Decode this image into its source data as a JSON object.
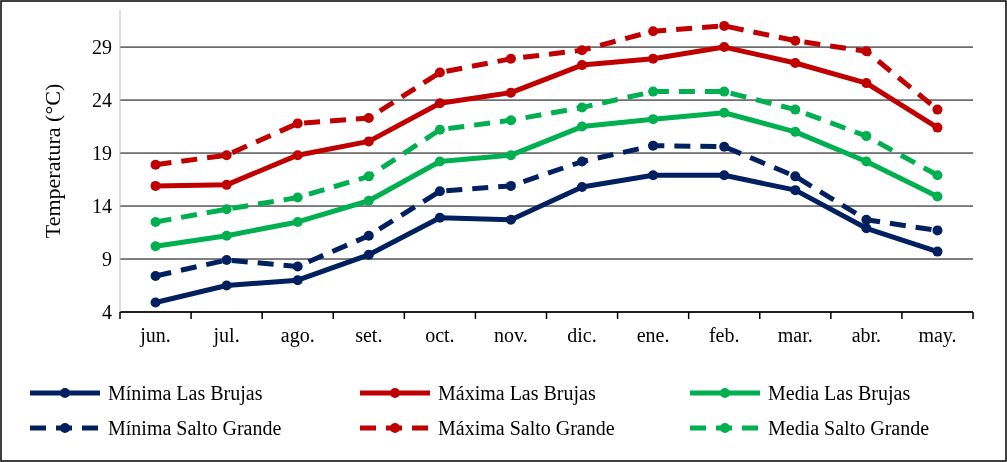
{
  "chart_data": {
    "type": "line",
    "ylabel": "Temperatura (°C)",
    "categories": [
      "jun.",
      "jul.",
      "ago.",
      "set.",
      "oct.",
      "nov.",
      "dic.",
      "ene.",
      "feb.",
      "mar.",
      "abr.",
      "may."
    ],
    "ylim": [
      4,
      32.5
    ],
    "yticks": [
      4,
      9,
      14,
      19,
      24,
      29
    ],
    "grid": "y",
    "legend": "bottom",
    "marker": "circle",
    "series": [
      {
        "name": "Mínima Las Brujas",
        "color": "#002060",
        "line_style": "solid",
        "values": [
          4.9,
          6.5,
          7.0,
          9.4,
          12.9,
          12.7,
          15.8,
          16.9,
          16.9,
          15.5,
          11.9,
          9.7
        ]
      },
      {
        "name": "Máxima Las Brujas",
        "color": "#c00000",
        "line_style": "solid",
        "values": [
          15.9,
          16.0,
          18.8,
          20.1,
          23.7,
          24.7,
          27.3,
          27.9,
          29.0,
          27.5,
          25.6,
          21.4
        ]
      },
      {
        "name": "Media Las Brujas",
        "color": "#00b050",
        "line_style": "solid",
        "values": [
          10.2,
          11.2,
          12.5,
          14.5,
          18.2,
          18.8,
          21.5,
          22.2,
          22.8,
          21.0,
          18.2,
          14.9
        ]
      },
      {
        "name": "Mínima Salto Grande",
        "color": "#002060",
        "line_style": "dashed",
        "values": [
          7.4,
          8.9,
          8.3,
          11.2,
          15.4,
          15.9,
          18.2,
          19.7,
          19.6,
          16.8,
          12.7,
          11.7
        ]
      },
      {
        "name": "Máxima Salto Grande",
        "color": "#c00000",
        "line_style": "dashed",
        "values": [
          17.9,
          18.8,
          21.8,
          22.3,
          26.6,
          27.9,
          28.7,
          30.5,
          31.0,
          29.6,
          28.6,
          23.1
        ]
      },
      {
        "name": "Media Salto Grande",
        "color": "#00b050",
        "line_style": "dashed",
        "values": [
          12.5,
          13.7,
          14.8,
          16.8,
          21.2,
          22.1,
          23.3,
          24.8,
          24.8,
          23.1,
          20.6,
          16.9
        ]
      }
    ]
  }
}
